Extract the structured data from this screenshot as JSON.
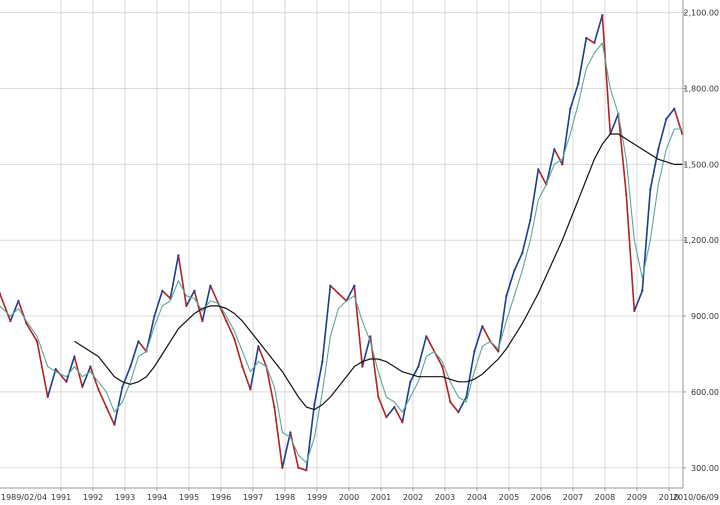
{
  "chart_data": {
    "type": "line",
    "title": "",
    "xlabel": "",
    "ylabel": "",
    "ylim": [
      220,
      2150
    ],
    "xlim": [
      "1989/02/04",
      "2010/06/09"
    ],
    "y_ticks": [
      "300.00",
      "600.00",
      "900.00",
      "1,200.00",
      "1,500.00",
      "1,800.00",
      "2,100.00"
    ],
    "x_tick_labels": [
      "1989/02/04",
      "1991",
      "1992",
      "1993",
      "1994",
      "1995",
      "1996",
      "1997",
      "1998",
      "1999",
      "2000",
      "2001",
      "2002",
      "2003",
      "2004",
      "2005",
      "2006",
      "2007",
      "2008",
      "2009",
      "2010",
      "2010/06/09"
    ],
    "grid": true,
    "legend": "none",
    "colors": {
      "up": "#1a3d8f",
      "down": "#b22222",
      "short_ma": "#5aa89a",
      "long_ma": "#111111",
      "grid": "#d9d9d9",
      "axis": "#9a9a9a"
    },
    "x": [
      "1989-02",
      "1989-06",
      "1989-09",
      "1989-12",
      "1990-04",
      "1990-08",
      "1990-11",
      "1991-03",
      "1991-06",
      "1991-09",
      "1991-12",
      "1992-03",
      "1992-06",
      "1992-09",
      "1992-12",
      "1993-03",
      "1993-06",
      "1993-09",
      "1993-12",
      "1994-03",
      "1994-06",
      "1994-09",
      "1994-12",
      "1995-03",
      "1995-06",
      "1995-09",
      "1995-12",
      "1996-03",
      "1996-06",
      "1996-09",
      "1996-12",
      "1997-03",
      "1997-06",
      "1997-09",
      "1997-12",
      "1998-03",
      "1998-06",
      "1998-09",
      "1998-12",
      "1999-03",
      "1999-06",
      "1999-09",
      "1999-12",
      "2000-03",
      "2000-06",
      "2000-09",
      "2000-12",
      "2001-03",
      "2001-06",
      "2001-09",
      "2001-12",
      "2002-03",
      "2002-06",
      "2002-09",
      "2002-12",
      "2003-03",
      "2003-06",
      "2003-09",
      "2003-12",
      "2004-03",
      "2004-06",
      "2004-09",
      "2004-12",
      "2005-03",
      "2005-06",
      "2005-09",
      "2005-12",
      "2006-03",
      "2006-06",
      "2006-09",
      "2006-12",
      "2007-03",
      "2007-06",
      "2007-09",
      "2007-12",
      "2008-03",
      "2008-06",
      "2008-09",
      "2008-12",
      "2009-03",
      "2009-06",
      "2009-09",
      "2009-12",
      "2010-03",
      "2010-06"
    ],
    "series": [
      {
        "values": [
          990,
          880,
          960,
          870,
          800,
          580,
          690,
          640,
          740,
          620,
          700,
          610,
          540,
          470,
          620,
          700,
          800,
          760,
          900,
          1000,
          970,
          1140,
          940,
          1000,
          880,
          1020,
          950,
          880,
          810,
          700,
          610,
          780,
          700,
          540,
          300,
          440,
          300,
          290,
          550,
          720,
          1020,
          990,
          960,
          1020,
          700,
          820,
          580,
          500,
          540,
          480,
          640,
          700,
          820,
          760,
          700,
          560,
          520,
          580,
          760,
          860,
          800,
          760,
          980,
          1080,
          1150,
          1280,
          1480,
          1420,
          1560,
          1500,
          1720,
          1820,
          2000,
          1980,
          2090,
          1620,
          1700,
          1380,
          920,
          1000,
          1400,
          1560,
          1680,
          1720,
          1620
        ]
      },
      {
        "values": [
          940,
          900,
          930,
          880,
          820,
          700,
          680,
          660,
          700,
          660,
          680,
          640,
          600,
          520,
          560,
          640,
          740,
          760,
          860,
          940,
          960,
          1040,
          980,
          970,
          920,
          960,
          950,
          900,
          840,
          760,
          680,
          720,
          700,
          620,
          440,
          420,
          350,
          320,
          420,
          600,
          820,
          930,
          960,
          980,
          880,
          800,
          680,
          580,
          560,
          520,
          580,
          640,
          740,
          760,
          720,
          640,
          580,
          560,
          680,
          780,
          800,
          770,
          880,
          980,
          1080,
          1200,
          1360,
          1420,
          1500,
          1520,
          1620,
          1740,
          1880,
          1940,
          1980,
          1800,
          1700,
          1520,
          1200,
          1050,
          1200,
          1420,
          1560,
          1640,
          1640
        ]
      },
      {
        "values": [
          null,
          null,
          null,
          null,
          null,
          null,
          null,
          null,
          800,
          780,
          760,
          740,
          700,
          660,
          640,
          630,
          640,
          660,
          700,
          750,
          800,
          850,
          880,
          910,
          930,
          940,
          940,
          930,
          910,
          880,
          840,
          800,
          760,
          720,
          680,
          630,
          580,
          540,
          530,
          550,
          580,
          620,
          660,
          700,
          720,
          730,
          730,
          720,
          700,
          680,
          670,
          660,
          660,
          660,
          660,
          650,
          640,
          640,
          650,
          670,
          700,
          730,
          770,
          820,
          870,
          930,
          990,
          1060,
          1130,
          1200,
          1280,
          1360,
          1440,
          1520,
          1580,
          1620,
          1620,
          1600,
          1580,
          1560,
          1540,
          1520,
          1510,
          1500,
          1500
        ]
      }
    ]
  }
}
